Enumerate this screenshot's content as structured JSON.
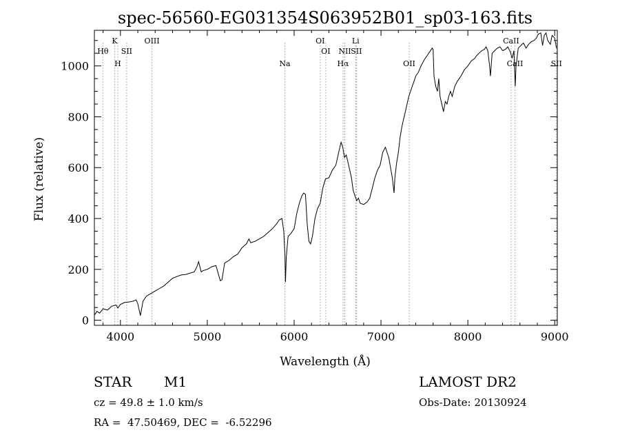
{
  "chart_data": {
    "type": "line",
    "title": "spec-56560-EG031354S063952B01_sp03-163.fits",
    "xlabel": "Wavelength (Å)",
    "ylabel": "Flux (relative)",
    "xlim": [
      3700,
      9030
    ],
    "ylim": [
      -20,
      1140
    ],
    "xticks": [
      4000,
      5000,
      6000,
      7000,
      8000,
      9000
    ],
    "yticks": [
      0,
      200,
      400,
      600,
      800,
      1000
    ],
    "line_color": "#000000",
    "marker_color": "#999999",
    "series": [
      {
        "points": [
          [
            3700,
            20
          ],
          [
            3730,
            35
          ],
          [
            3760,
            28
          ],
          [
            3800,
            45
          ],
          [
            3850,
            40
          ],
          [
            3900,
            55
          ],
          [
            3950,
            60
          ],
          [
            3970,
            48
          ],
          [
            4000,
            62
          ],
          [
            4050,
            70
          ],
          [
            4100,
            72
          ],
          [
            4150,
            75
          ],
          [
            4180,
            80
          ],
          [
            4200,
            65
          ],
          [
            4230,
            18
          ],
          [
            4260,
            75
          ],
          [
            4300,
            95
          ],
          [
            4350,
            105
          ],
          [
            4400,
            115
          ],
          [
            4450,
            125
          ],
          [
            4500,
            135
          ],
          [
            4550,
            150
          ],
          [
            4600,
            165
          ],
          [
            4650,
            172
          ],
          [
            4700,
            178
          ],
          [
            4750,
            180
          ],
          [
            4800,
            185
          ],
          [
            4850,
            190
          ],
          [
            4880,
            210
          ],
          [
            4900,
            230
          ],
          [
            4930,
            190
          ],
          [
            4950,
            195
          ],
          [
            5000,
            200
          ],
          [
            5050,
            210
          ],
          [
            5100,
            215
          ],
          [
            5150,
            155
          ],
          [
            5170,
            160
          ],
          [
            5200,
            225
          ],
          [
            5250,
            235
          ],
          [
            5300,
            250
          ],
          [
            5350,
            260
          ],
          [
            5400,
            285
          ],
          [
            5450,
            300
          ],
          [
            5480,
            320
          ],
          [
            5500,
            305
          ],
          [
            5550,
            310
          ],
          [
            5600,
            320
          ],
          [
            5650,
            330
          ],
          [
            5700,
            345
          ],
          [
            5750,
            360
          ],
          [
            5800,
            380
          ],
          [
            5830,
            395
          ],
          [
            5860,
            400
          ],
          [
            5880,
            350
          ],
          [
            5895,
            250
          ],
          [
            5900,
            150
          ],
          [
            5910,
            250
          ],
          [
            5930,
            330
          ],
          [
            5960,
            340
          ],
          [
            6000,
            360
          ],
          [
            6030,
            420
          ],
          [
            6060,
            460
          ],
          [
            6090,
            490
          ],
          [
            6110,
            500
          ],
          [
            6130,
            495
          ],
          [
            6150,
            380
          ],
          [
            6170,
            310
          ],
          [
            6190,
            300
          ],
          [
            6210,
            330
          ],
          [
            6240,
            400
          ],
          [
            6270,
            440
          ],
          [
            6300,
            460
          ],
          [
            6330,
            520
          ],
          [
            6360,
            555
          ],
          [
            6400,
            560
          ],
          [
            6440,
            590
          ],
          [
            6480,
            610
          ],
          [
            6500,
            640
          ],
          [
            6520,
            670
          ],
          [
            6540,
            700
          ],
          [
            6560,
            680
          ],
          [
            6580,
            640
          ],
          [
            6600,
            650
          ],
          [
            6620,
            620
          ],
          [
            6640,
            590
          ],
          [
            6660,
            560
          ],
          [
            6680,
            510
          ],
          [
            6700,
            490
          ],
          [
            6720,
            470
          ],
          [
            6740,
            480
          ],
          [
            6760,
            460
          ],
          [
            6800,
            455
          ],
          [
            6840,
            465
          ],
          [
            6870,
            480
          ],
          [
            6900,
            520
          ],
          [
            6930,
            560
          ],
          [
            6960,
            590
          ],
          [
            6990,
            610
          ],
          [
            7020,
            660
          ],
          [
            7050,
            680
          ],
          [
            7070,
            660
          ],
          [
            7090,
            640
          ],
          [
            7110,
            600
          ],
          [
            7130,
            560
          ],
          [
            7150,
            500
          ],
          [
            7160,
            560
          ],
          [
            7180,
            620
          ],
          [
            7200,
            660
          ],
          [
            7220,
            720
          ],
          [
            7240,
            760
          ],
          [
            7260,
            790
          ],
          [
            7280,
            820
          ],
          [
            7300,
            850
          ],
          [
            7320,
            880
          ],
          [
            7340,
            900
          ],
          [
            7360,
            920
          ],
          [
            7380,
            940
          ],
          [
            7400,
            960
          ],
          [
            7430,
            975
          ],
          [
            7460,
            1000
          ],
          [
            7500,
            1025
          ],
          [
            7550,
            1050
          ],
          [
            7590,
            1070
          ],
          [
            7600,
            1065
          ],
          [
            7610,
            960
          ],
          [
            7630,
            920
          ],
          [
            7650,
            900
          ],
          [
            7665,
            950
          ],
          [
            7680,
            880
          ],
          [
            7700,
            850
          ],
          [
            7720,
            820
          ],
          [
            7740,
            860
          ],
          [
            7760,
            850
          ],
          [
            7780,
            880
          ],
          [
            7800,
            900
          ],
          [
            7820,
            880
          ],
          [
            7850,
            920
          ],
          [
            7880,
            940
          ],
          [
            7920,
            960
          ],
          [
            7960,
            985
          ],
          [
            8000,
            1000
          ],
          [
            8040,
            1020
          ],
          [
            8080,
            1030
          ],
          [
            8100,
            1040
          ],
          [
            8130,
            1050
          ],
          [
            8160,
            1060
          ],
          [
            8190,
            1065
          ],
          [
            8210,
            1075
          ],
          [
            8230,
            1060
          ],
          [
            8250,
            1000
          ],
          [
            8260,
            960
          ],
          [
            8280,
            1050
          ],
          [
            8310,
            1060
          ],
          [
            8340,
            1070
          ],
          [
            8370,
            1075
          ],
          [
            8400,
            1060
          ],
          [
            8430,
            1065
          ],
          [
            8460,
            1075
          ],
          [
            8490,
            1055
          ],
          [
            8510,
            1030
          ],
          [
            8530,
            1060
          ],
          [
            8545,
            920
          ],
          [
            8555,
            1000
          ],
          [
            8580,
            1070
          ],
          [
            8610,
            1080
          ],
          [
            8640,
            1090
          ],
          [
            8670,
            1070
          ],
          [
            8700,
            1085
          ],
          [
            8730,
            1095
          ],
          [
            8760,
            1100
          ],
          [
            8790,
            1110
          ],
          [
            8810,
            1125
          ],
          [
            8840,
            1130
          ],
          [
            8860,
            1080
          ],
          [
            8880,
            1120
          ],
          [
            8900,
            1130
          ],
          [
            8920,
            1100
          ],
          [
            8950,
            1085
          ],
          [
            8970,
            1120
          ],
          [
            9000,
            1110
          ],
          [
            9020,
            1070
          ]
        ]
      }
    ],
    "markers": [
      {
        "label": "Hθ",
        "x": 3798,
        "row": 2,
        "color": "#999999"
      },
      {
        "label": "K",
        "x": 3934,
        "row": 1,
        "color": "#999999"
      },
      {
        "label": "H",
        "x": 3969,
        "row": 3,
        "color": "#999999"
      },
      {
        "label": "SII",
        "x": 4072,
        "row": 2,
        "color": "#999999"
      },
      {
        "label": "OIII",
        "x": 4363,
        "row": 1,
        "color": "#999999"
      },
      {
        "label": "Na",
        "x": 5893,
        "row": 3,
        "color": "#999999"
      },
      {
        "label": "OI",
        "x": 6300,
        "row": 1,
        "color": "#999999"
      },
      {
        "label": "OI",
        "x": 6364,
        "row": 2,
        "color": "#999999"
      },
      {
        "label": "Hα",
        "x": 6563,
        "row": 3,
        "color": "#999999"
      },
      {
        "label": "NII",
        "x": 6583,
        "row": 2,
        "color": "#999999"
      },
      {
        "label": "Li",
        "x": 6708,
        "row": 1,
        "color": "#999999"
      },
      {
        "label": "SII",
        "x": 6717,
        "row": 2,
        "color": "#999999"
      },
      {
        "label": "OII",
        "x": 7325,
        "row": 3,
        "color": "#999999"
      },
      {
        "label": "SII",
        "x": 9069,
        "row": 3,
        "color": "#999999"
      },
      {
        "label": "CaII",
        "x": 8498,
        "row": 1,
        "color": "#999999"
      },
      {
        "label": "CaII",
        "x": 8542,
        "row": 3,
        "color": "#999999"
      }
    ]
  },
  "info": {
    "class": "STAR",
    "subclass": "M1",
    "survey": "LAMOST DR2",
    "cz": "cz = 49.8 ± 1.0 km/s",
    "obs_date": "Obs-Date: 20130924",
    "coords": "RA =  47.50469, DEC =  -6.52296"
  }
}
